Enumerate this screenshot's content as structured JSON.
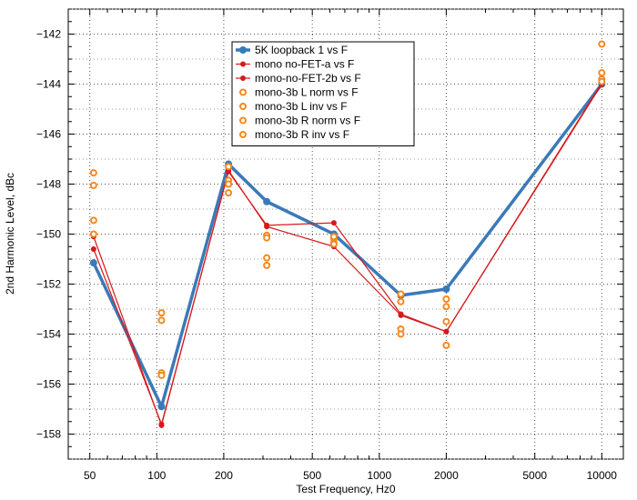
{
  "chart_data": {
    "type": "scatter",
    "xlabel": "Test Frequency, Hz0",
    "ylabel": "2nd Harmonic Level, dBc",
    "xscale": "log",
    "xlim": [
      40,
      12500
    ],
    "ylim": [
      -159.0,
      -141.0
    ],
    "xticks": [
      50,
      100,
      200,
      500,
      1000,
      2000,
      5000,
      10000
    ],
    "yticks": [
      -158,
      -156,
      -154,
      -152,
      -150,
      -148,
      -146,
      -144,
      -142
    ],
    "grid": true,
    "legend_position": "top-center",
    "series": [
      {
        "name": "5K loopback 1 vs F",
        "color": "#3a7ab8",
        "style": "thick-line",
        "x": [
          52,
          105,
          210,
          312,
          625,
          1250,
          2000,
          10000
        ],
        "y": [
          -151.15,
          -156.9,
          -147.2,
          -148.7,
          -150.0,
          -152.45,
          -152.2,
          -144.0
        ]
      },
      {
        "name": "mono no-FET-a vs F",
        "color": "#d7191c",
        "style": "thin-line",
        "x": [
          52,
          105,
          210,
          312,
          625,
          1250,
          2000,
          10000
        ],
        "y": [
          -150.6,
          -157.6,
          -147.5,
          -149.65,
          -149.55,
          -153.2,
          -153.9,
          -143.95
        ]
      },
      {
        "name": "mono-no-FET-2b vs F",
        "color": "#d7191c",
        "style": "thin-line",
        "x": [
          52,
          105,
          210,
          312,
          625,
          1250,
          2000,
          10000
        ],
        "y": [
          -150.1,
          -157.65,
          -147.45,
          -149.7,
          -150.5,
          -153.25,
          -153.9,
          -144.0
        ]
      },
      {
        "name": "mono-3b L norm vs F",
        "color": "#f5891f",
        "style": "ring",
        "x": [
          52,
          105,
          210,
          312,
          625,
          1250,
          2000,
          10000
        ],
        "y": [
          -147.55,
          -153.15,
          -147.3,
          -150.05,
          -150.2,
          -152.4,
          -152.6,
          -142.4
        ]
      },
      {
        "name": "mono-3b L inv vs F",
        "color": "#f5891f",
        "style": "ring",
        "x": [
          52,
          105,
          210,
          312,
          625,
          1250,
          2000,
          10000
        ],
        "y": [
          -148.05,
          -153.45,
          -147.85,
          -150.15,
          -150.35,
          -152.7,
          -152.9,
          -143.55
        ]
      },
      {
        "name": "mono-3b R norm vs F",
        "color": "#f5891f",
        "style": "ring",
        "x": [
          52,
          105,
          210,
          312,
          625,
          1250,
          2000,
          10000
        ],
        "y": [
          -149.45,
          -155.55,
          -148.0,
          -150.95,
          -150.1,
          -153.8,
          -153.5,
          -143.8
        ]
      },
      {
        "name": "mono-3b R inv vs F",
        "color": "#f5891f",
        "style": "ring",
        "x": [
          52,
          105,
          210,
          312,
          625,
          1250,
          2000,
          10000
        ],
        "y": [
          -150.0,
          -155.65,
          -148.35,
          -151.25,
          -150.4,
          -154.0,
          -154.45,
          -143.9
        ]
      }
    ]
  }
}
